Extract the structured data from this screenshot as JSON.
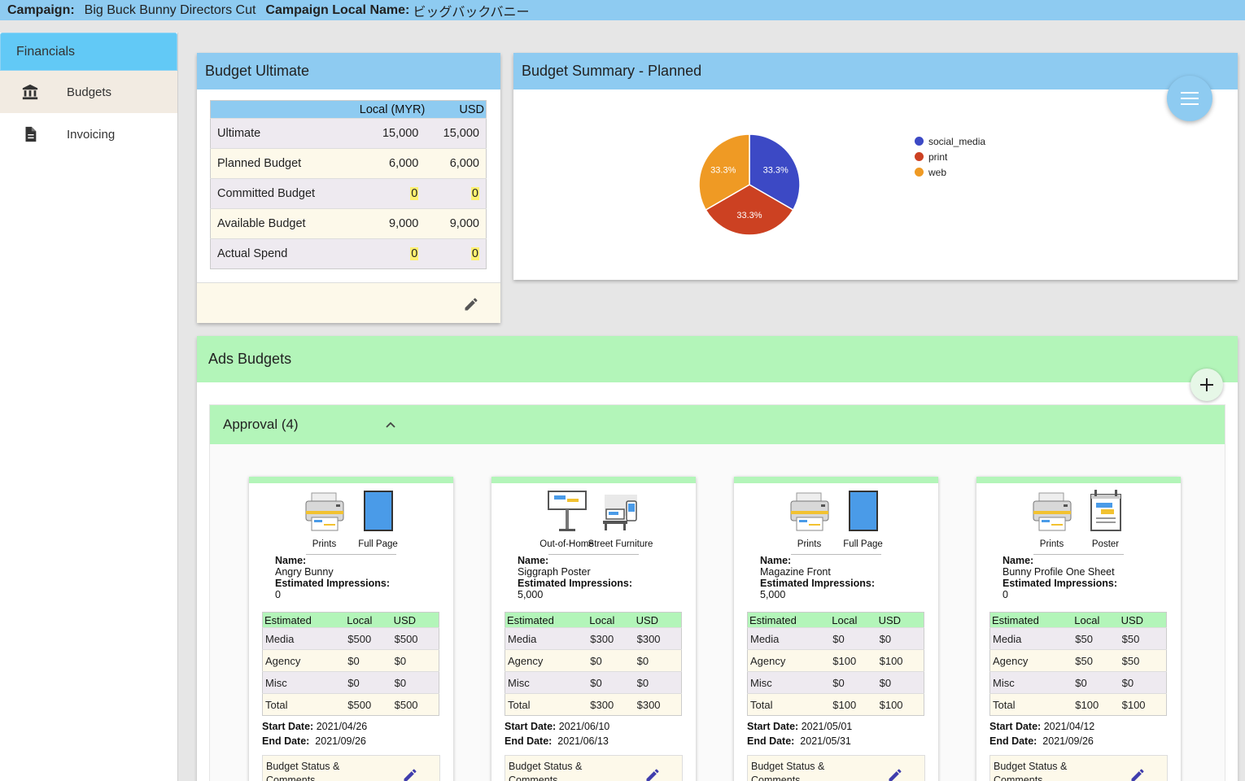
{
  "topbar": {
    "campaign_label": "Campaign:",
    "campaign_name": "Big Buck Bunny Directors Cut",
    "local_name_label": "Campaign Local Name:",
    "local_name": "ビッグバックバニー"
  },
  "sidebar": {
    "header": "Financials",
    "items": [
      {
        "label": "Budgets",
        "icon": "bank-icon",
        "active": true
      },
      {
        "label": "Invoicing",
        "icon": "document-icon",
        "active": false
      }
    ]
  },
  "budget_ultimate": {
    "title": "Budget Ultimate",
    "columns": [
      "",
      "Local (MYR)",
      "USD"
    ],
    "rows": [
      {
        "label": "Ultimate",
        "local": "15,000",
        "usd": "15,000"
      },
      {
        "label": "Planned Budget",
        "local": "6,000",
        "usd": "6,000"
      },
      {
        "label": "Committed Budget",
        "local": "0",
        "usd": "0"
      },
      {
        "label": "Available Budget",
        "local": "9,000",
        "usd": "9,000"
      },
      {
        "label": "Actual Spend",
        "local": "0",
        "usd": "0"
      }
    ]
  },
  "budget_summary": {
    "title": "Budget Summary - Planned"
  },
  "chart_data": {
    "type": "pie",
    "title": "",
    "categories": [
      "social_media",
      "print",
      "web"
    ],
    "values": [
      33.3,
      33.3,
      33.3
    ],
    "labels": [
      "33.3%",
      "33.3%",
      "33.3%"
    ],
    "colors": [
      "#3c49c5",
      "#cc4122",
      "#ef9a24"
    ],
    "legend": "right"
  },
  "ads_budgets": {
    "title": "Ads Budgets",
    "approval_label": "Approval (4)",
    "cards": [
      {
        "icons": [
          {
            "name": "printer-icon",
            "label": "Prints"
          },
          {
            "name": "full-page-icon",
            "label": "Full Page"
          }
        ],
        "name_label": "Name:",
        "name": "Angry Bunny",
        "impressions_label": "Estimated Impressions:",
        "impressions": "0",
        "table_headers": [
          "Estimated",
          "Local",
          "USD"
        ],
        "rows": [
          {
            "label": "Media",
            "local": "$500",
            "usd": "$500"
          },
          {
            "label": "Agency",
            "local": "$0",
            "usd": "$0"
          },
          {
            "label": "Misc",
            "local": "$0",
            "usd": "$0"
          },
          {
            "label": "Total",
            "local": "$500",
            "usd": "$500"
          }
        ],
        "start_label": "Start Date:",
        "start": "2021/04/26",
        "end_label": "End Date:",
        "end": "2021/09/26",
        "status_label": "Budget Status & Comments"
      },
      {
        "icons": [
          {
            "name": "billboard-icon",
            "label": "Out-of-Home"
          },
          {
            "name": "street-furniture-icon",
            "label": "Street Furniture"
          }
        ],
        "name_label": "Name:",
        "name": "Siggraph Poster",
        "impressions_label": "Estimated Impressions:",
        "impressions": "5,000",
        "table_headers": [
          "Estimated",
          "Local",
          "USD"
        ],
        "rows": [
          {
            "label": "Media",
            "local": "$300",
            "usd": "$300"
          },
          {
            "label": "Agency",
            "local": "$0",
            "usd": "$0"
          },
          {
            "label": "Misc",
            "local": "$0",
            "usd": "$0"
          },
          {
            "label": "Total",
            "local": "$300",
            "usd": "$300"
          }
        ],
        "start_label": "Start Date:",
        "start": "2021/06/10",
        "end_label": "End Date:",
        "end": "2021/06/13",
        "status_label": "Budget Status & Comments"
      },
      {
        "icons": [
          {
            "name": "printer-icon",
            "label": "Prints"
          },
          {
            "name": "full-page-icon",
            "label": "Full Page"
          }
        ],
        "name_label": "Name:",
        "name": "Magazine Front",
        "impressions_label": "Estimated Impressions:",
        "impressions": "5,000",
        "table_headers": [
          "Estimated",
          "Local",
          "USD"
        ],
        "rows": [
          {
            "label": "Media",
            "local": "$0",
            "usd": "$0"
          },
          {
            "label": "Agency",
            "local": "$100",
            "usd": "$100"
          },
          {
            "label": "Misc",
            "local": "$0",
            "usd": "$0"
          },
          {
            "label": "Total",
            "local": "$100",
            "usd": "$100"
          }
        ],
        "start_label": "Start Date:",
        "start": "2021/05/01",
        "end_label": "End Date:",
        "end": "2021/05/31",
        "status_label": "Budget Status & Comments"
      },
      {
        "icons": [
          {
            "name": "printer-icon",
            "label": "Prints"
          },
          {
            "name": "poster-icon",
            "label": "Poster"
          }
        ],
        "name_label": "Name:",
        "name": "Bunny Profile One Sheet",
        "impressions_label": "Estimated Impressions:",
        "impressions": "0",
        "table_headers": [
          "Estimated",
          "Local",
          "USD"
        ],
        "rows": [
          {
            "label": "Media",
            "local": "$50",
            "usd": "$50"
          },
          {
            "label": "Agency",
            "local": "$50",
            "usd": "$50"
          },
          {
            "label": "Misc",
            "local": "$0",
            "usd": "$0"
          },
          {
            "label": "Total",
            "local": "$100",
            "usd": "$100"
          }
        ],
        "start_label": "Start Date:",
        "start": "2021/04/12",
        "end_label": "End Date:",
        "end": "2021/09/26",
        "status_label": "Budget Status & Comments"
      }
    ]
  }
}
